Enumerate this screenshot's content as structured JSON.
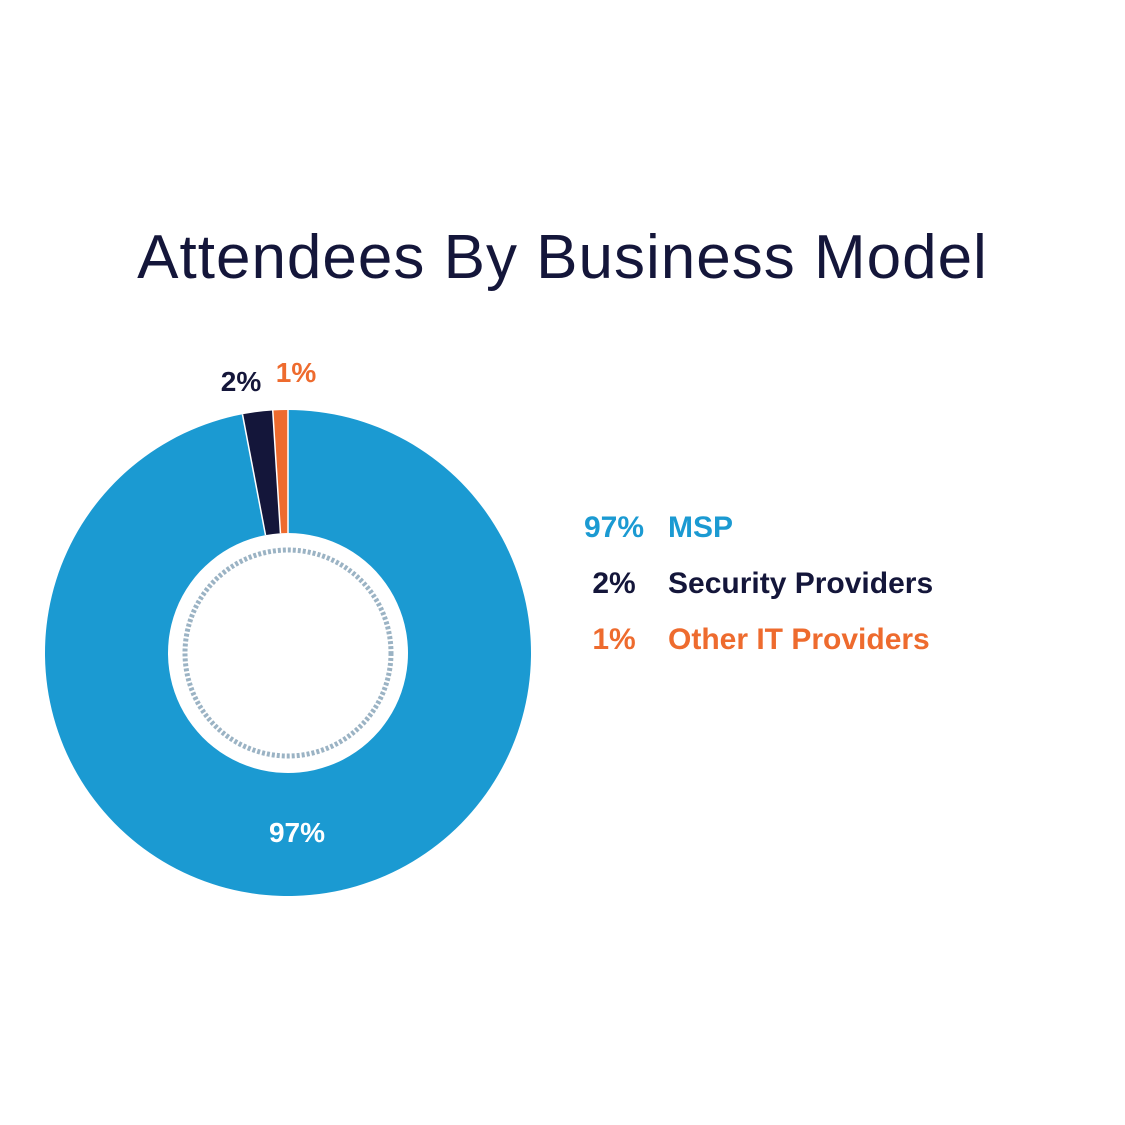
{
  "chart_data": {
    "type": "pie",
    "title": "Attendees By Business Model",
    "series": [
      {
        "name": "MSP",
        "value": 97,
        "label": "97%",
        "color": "#1b9ad2"
      },
      {
        "name": "Security Providers",
        "value": 2,
        "label": "2%",
        "color": "#14163a"
      },
      {
        "name": "Other IT Providers",
        "value": 1,
        "label": "1%",
        "color": "#ee6b2e"
      }
    ],
    "legend": {
      "placement": "right",
      "items": [
        {
          "pct": "97%",
          "label": "MSP",
          "color": "#1b9ad2"
        },
        {
          "pct": "2%",
          "label": "Security Providers",
          "color": "#14163a"
        },
        {
          "pct": "1%",
          "label": "Other IT Providers",
          "color": "#ee6b2e"
        }
      ]
    }
  }
}
